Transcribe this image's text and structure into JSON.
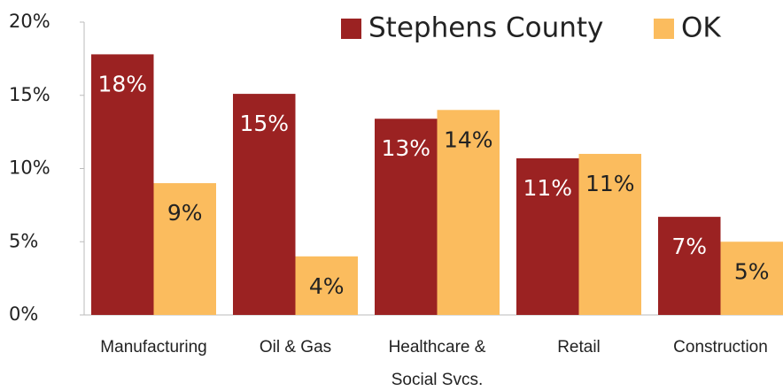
{
  "chart_data": {
    "type": "bar",
    "categories": [
      "Manufacturing",
      "Oil & Gas",
      [
        "Healthcare &",
        "Social Svcs."
      ],
      "Retail",
      "Construction"
    ],
    "series": [
      {
        "name": "Stephens County",
        "color": "#9b2222",
        "values": [
          17.8,
          15.1,
          13.4,
          10.7,
          6.7
        ],
        "value_labels": [
          "18%",
          "15%",
          "13%",
          "11%",
          "7%"
        ]
      },
      {
        "name": "OK",
        "color": "#fbbc5e",
        "values": [
          9,
          4,
          14,
          11,
          5
        ],
        "value_labels": [
          "9%",
          "4%",
          "14%",
          "11%",
          "5%"
        ]
      }
    ],
    "ylim": [
      0,
      20
    ],
    "yticks": [
      {
        "value": 0,
        "label": "0%"
      },
      {
        "value": 5,
        "label": "5%"
      },
      {
        "value": 10,
        "label": "10%"
      },
      {
        "value": 15,
        "label": "15%"
      },
      {
        "value": 20,
        "label": "20%"
      }
    ],
    "grid": false,
    "legend": "top-right"
  }
}
